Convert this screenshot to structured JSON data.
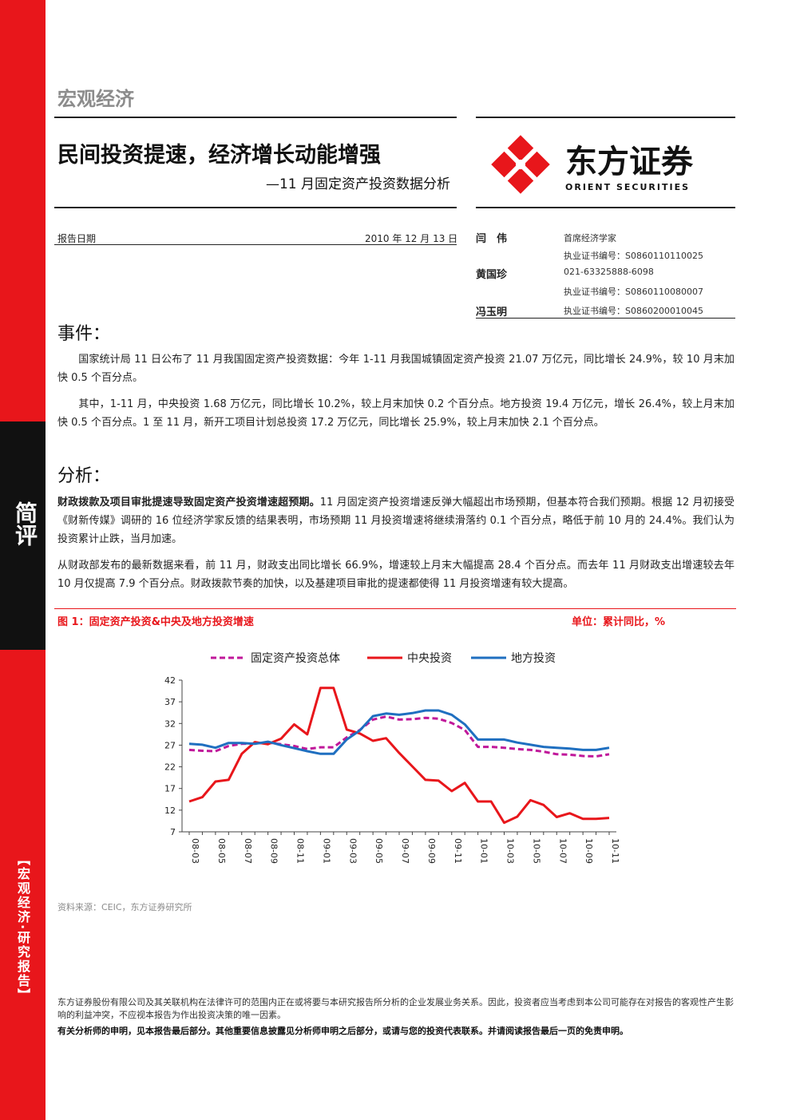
{
  "category": "宏观经济",
  "title": "民间投资提速，经济增长动能增强",
  "subtitle": "—11 月固定资产投资数据分析",
  "logo": {
    "cn": "东方证券",
    "en": "ORIENT  SECURITIES"
  },
  "report_date_label": "报告日期",
  "report_date": "2010 年 12 月 13 日",
  "authors": [
    {
      "name": "闫　伟",
      "lines": [
        "首席经济学家",
        "执业证书编号：S0860110110025"
      ]
    },
    {
      "name": "黄国珍",
      "lines": [
        "021-63325888-6098",
        "执业证书编号：S0860110080007"
      ]
    },
    {
      "name": "冯玉明",
      "lines": [
        "执业证书编号：S0860200010045"
      ]
    }
  ],
  "sidebar": {
    "label": "简评",
    "vertical": "【宏观经济·研究报告】"
  },
  "event": {
    "heading": "事件：",
    "paras": [
      "　　国家统计局 11 日公布了 11 月我国固定资产投资数据：今年 1-11 月我国城镇固定资产投资 21.07 万亿元，同比增长 24.9%，较 10 月末加快 0.5 个百分点。",
      "　　其中，1-11 月，中央投资 1.68 万亿元，同比增长 10.2%，较上月末加快 0.2 个百分点。地方投资 19.4 万亿元，增长 26.4%，较上月末加快 0.5 个百分点。1 至 11 月，新开工项目计划总投资 17.2 万亿元，同比增长 25.9%，较上月末加快 2.1 个百分点。"
    ]
  },
  "analysis": {
    "heading": "分析：",
    "lead_bold": "财政拨款及项目审批提速导致固定资产投资增速超预期。",
    "lead_rest": "11 月固定资产投资增速反弹大幅超出市场预期，但基本符合我们预期。根据 12 月初接受《财新传媒》调研的 16 位经济学家反馈的结果表明，市场预期 11 月投资增速将继续滑落约 0.1 个百分点，略低于前 10 月的 24.4%。我们认为投资累计止跌，当月加速。",
    "para2": "从财政部发布的最新数据来看，前 11 月，财政支出同比增长 66.9%，增速较上月末大幅提高 28.4 个百分点。而去年 11 月财政支出增速较去年 10 月仅提高 7.9 个百分点。财政拨款节奏的加快，以及基建项目审批的提速都使得 11 月投资增速有较大提高。"
  },
  "figure": {
    "title": "图 1：固定资产投资&中央及地方投资增速",
    "unit": "单位：累计同比，%",
    "source": "资料来源：CEIC，东方证券研究所"
  },
  "chart_data": {
    "type": "line",
    "x": [
      "08-03",
      "08-04",
      "08-05",
      "08-06",
      "08-07",
      "08-08",
      "08-09",
      "08-10",
      "08-11",
      "08-12",
      "09-01",
      "09-02",
      "09-03",
      "09-04",
      "09-05",
      "09-06",
      "09-07",
      "09-08",
      "09-09",
      "09-10",
      "09-11",
      "09-12",
      "10-01",
      "10-02",
      "10-03",
      "10-04",
      "10-05",
      "10-06",
      "10-07",
      "10-08",
      "10-09",
      "10-10",
      "10-11"
    ],
    "x_tick_labels": [
      "08-03",
      "08-05",
      "08-07",
      "08-09",
      "08-11",
      "09-01",
      "09-03",
      "09-05",
      "09-07",
      "09-09",
      "09-11",
      "10-01",
      "10-03",
      "10-05",
      "10-07",
      "10-09",
      "10-11"
    ],
    "yticks": [
      7,
      12,
      17,
      22,
      27,
      32,
      37,
      42
    ],
    "ylim": [
      7,
      42
    ],
    "series": [
      {
        "name": "固定资产投资总体",
        "color": "#c0189a",
        "dash": true,
        "values": [
          25.9,
          25.7,
          25.6,
          26.8,
          27.3,
          27.4,
          27.6,
          27.2,
          26.8,
          26.1,
          26.5,
          26.5,
          28.8,
          30.5,
          32.9,
          33.6,
          32.9,
          33.0,
          33.3,
          33.1,
          32.1,
          30.5,
          26.6,
          26.6,
          26.4,
          26.1,
          25.9,
          25.5,
          24.9,
          24.8,
          24.5,
          24.4,
          24.9
        ]
      },
      {
        "name": "中央投资",
        "color": "#e8161b",
        "dash": false,
        "values": [
          14.0,
          15.0,
          18.6,
          19.0,
          25.0,
          27.7,
          27.2,
          28.5,
          31.8,
          29.5,
          40.2,
          40.2,
          30.6,
          29.7,
          28.0,
          28.6,
          25.2,
          22.1,
          19.0,
          18.8,
          16.4,
          18.3,
          14.0,
          14.0,
          9.1,
          10.5,
          14.3,
          13.2,
          10.4,
          11.3,
          10.0,
          10.0,
          10.2
        ]
      },
      {
        "name": "地方投资",
        "color": "#1f6fc0",
        "dash": false,
        "values": [
          27.3,
          27.1,
          26.4,
          27.5,
          27.5,
          27.3,
          27.8,
          27.0,
          26.3,
          25.6,
          25.0,
          25.0,
          28.3,
          30.4,
          33.7,
          34.3,
          34.0,
          34.4,
          35.0,
          35.0,
          34.0,
          31.8,
          28.3,
          28.3,
          28.3,
          27.6,
          27.1,
          26.6,
          26.4,
          26.2,
          25.9,
          25.9,
          26.4
        ]
      }
    ]
  },
  "disclaimer": "东方证券股份有限公司及其关联机构在法律许可的范围内正在或将要与本研究报告所分析的企业发展业务关系。因此，投资者应当考虑到本公司可能存在对报告的客观性产生影响的利益冲突，不应视本报告为作出投资决策的唯一因素。",
  "disclaimer_bold": "有关分析师的申明，见本报告最后部分。其他重要信息披露见分析师申明之后部分，或请与您的投资代表联系。并请阅读报告最后一页的免责申明。"
}
